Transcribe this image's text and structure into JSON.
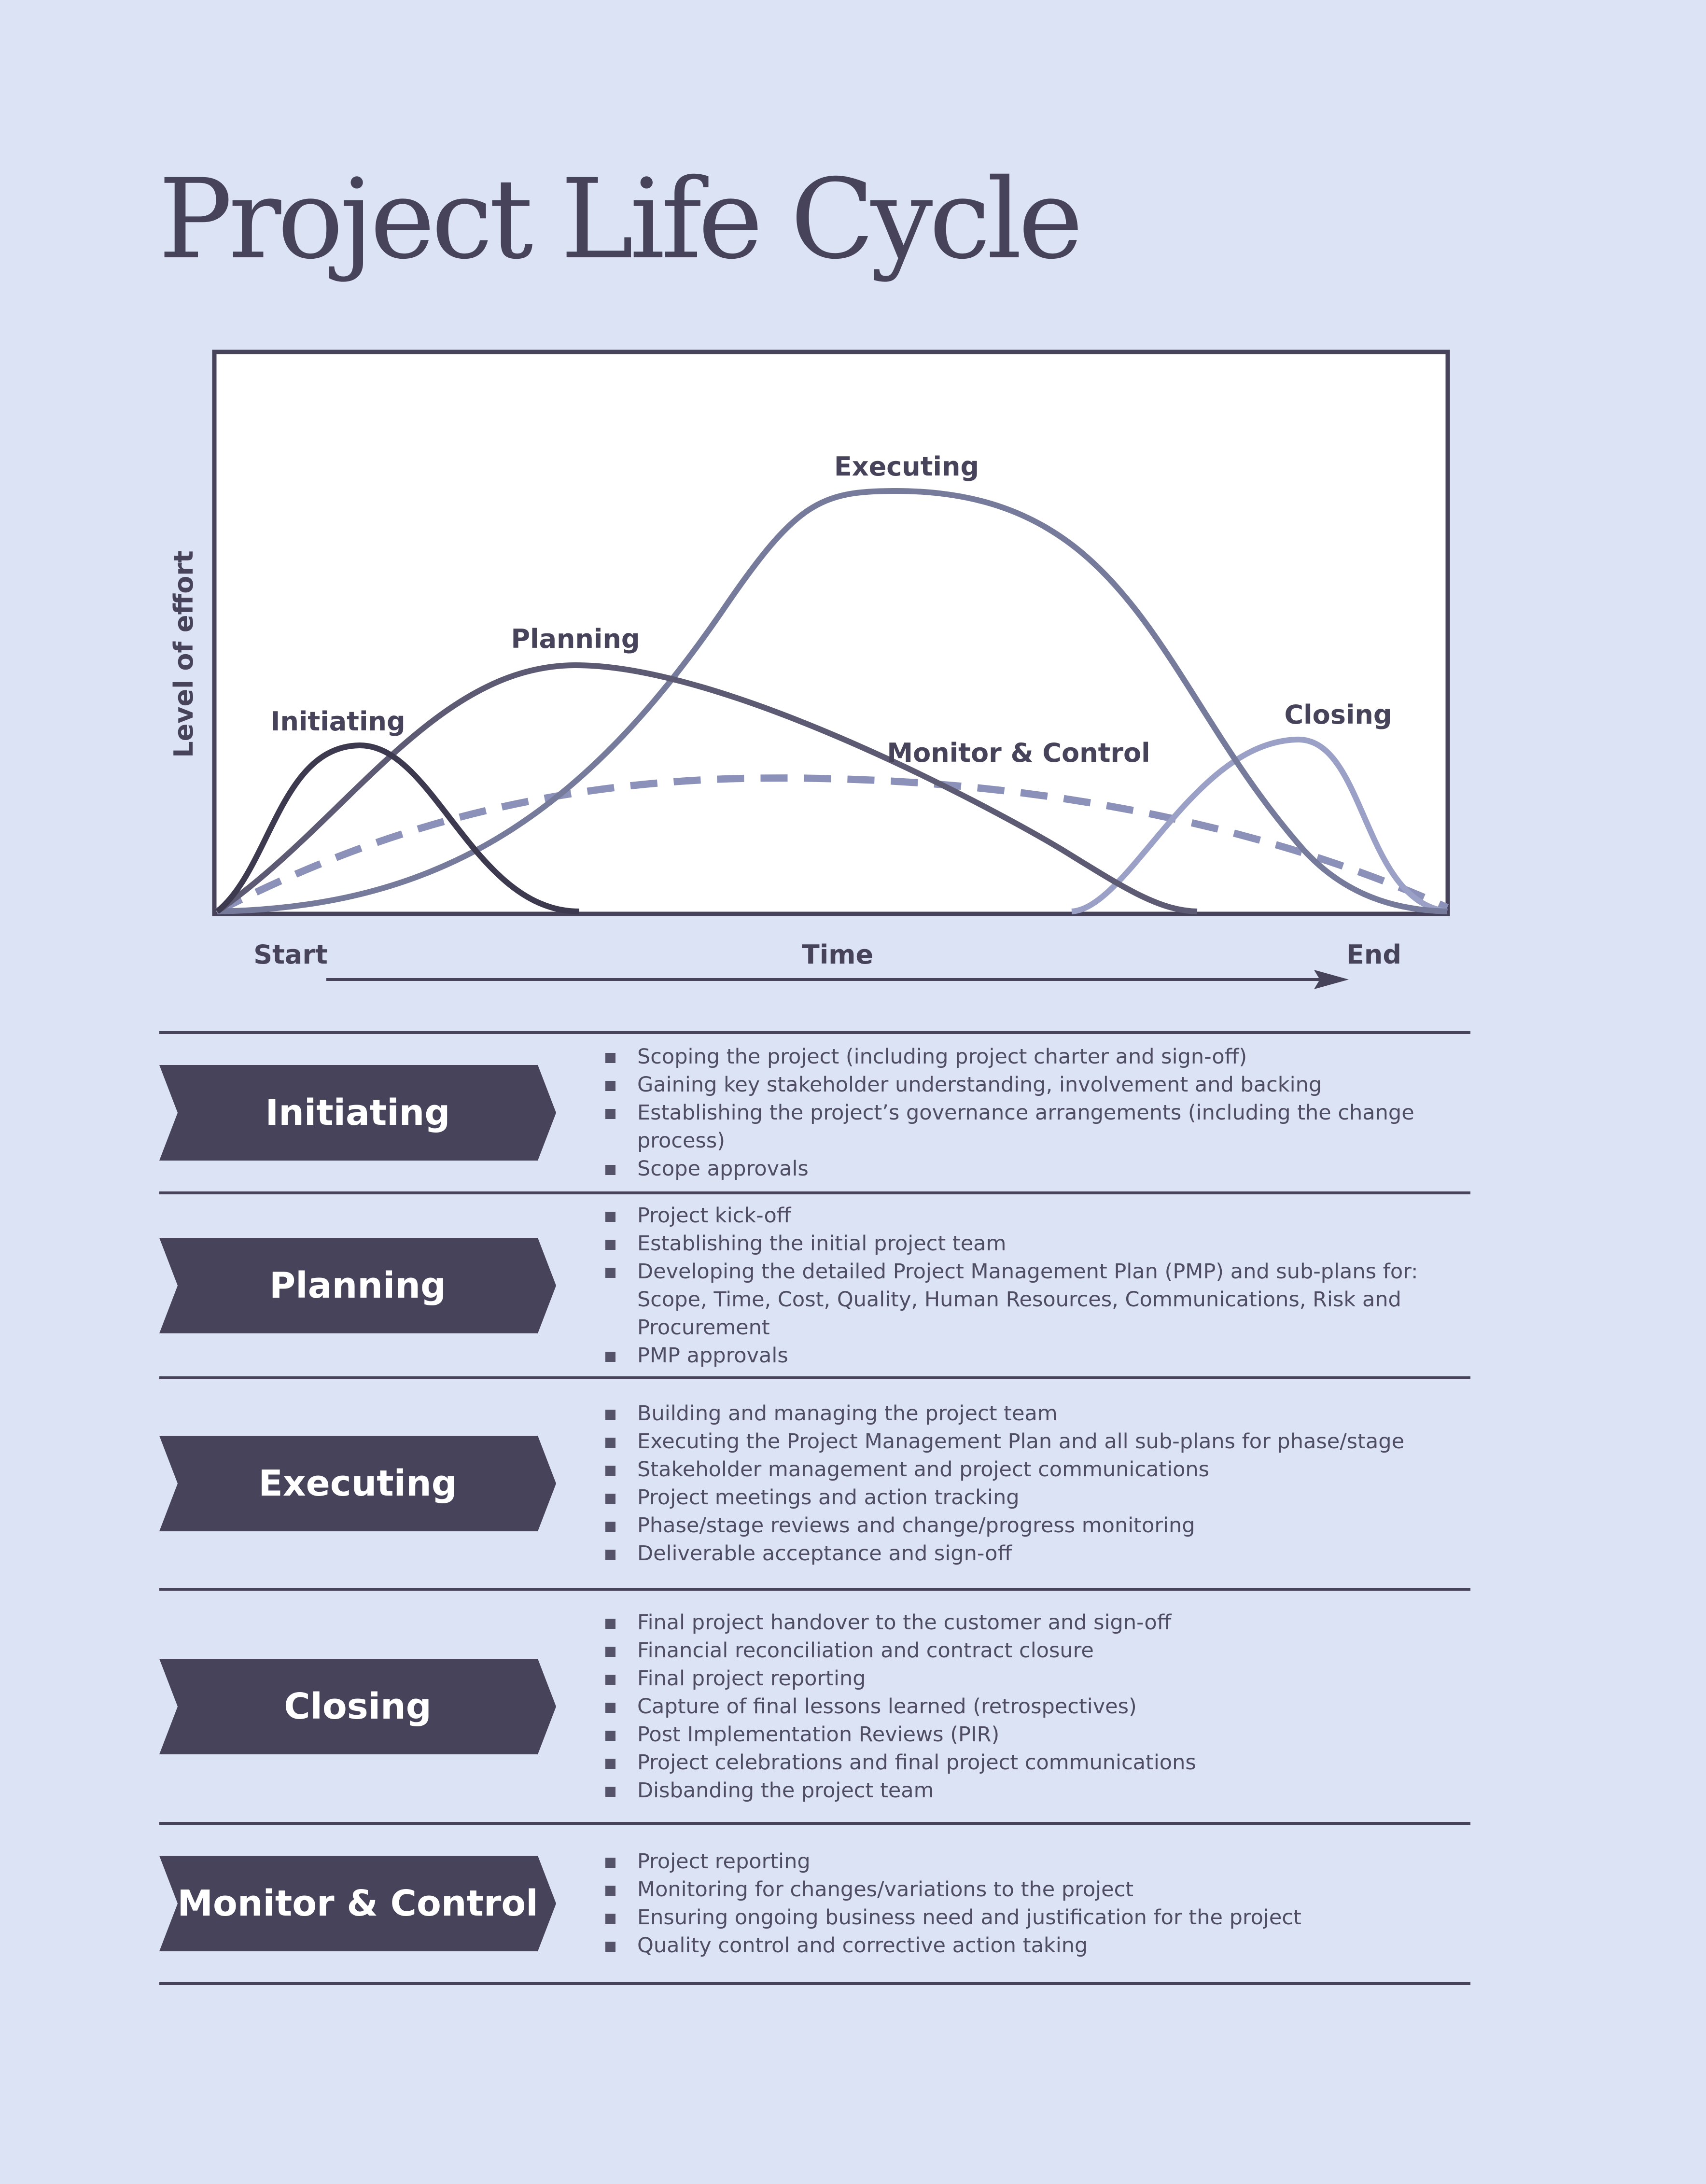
{
  "title": "Project Life Cycle",
  "chart_data": {
    "type": "line",
    "ylabel": "Level of effort",
    "xlabel": "Time",
    "x_start_label": "Start",
    "x_end_label": "End",
    "grid": false,
    "legend": "none",
    "series": [
      {
        "name": "Initiating",
        "color": "#3d3a50",
        "peak_x": 0.12,
        "peak_y": 0.3
      },
      {
        "name": "Planning",
        "color": "#5d5b74",
        "peak_x": 0.29,
        "peak_y": 0.44
      },
      {
        "name": "Executing",
        "color": "#767a9b",
        "peak_x": 0.55,
        "peak_y": 0.75
      },
      {
        "name": "Closing",
        "color": "#9ba1c6",
        "peak_x": 0.88,
        "peak_y": 0.31
      },
      {
        "name": "Monitor & Control",
        "color": "#8b91b8",
        "style": "dashed",
        "peak_x": 0.45,
        "peak_y": 0.25
      }
    ]
  },
  "phases": [
    {
      "label": "Initiating",
      "items": [
        "Scoping the project (including project charter and sign-off)",
        "Gaining key stakeholder understanding, involvement and backing",
        "Establishing the project’s governance arrangements (including the change process)",
        "Scope approvals"
      ]
    },
    {
      "label": "Planning",
      "items": [
        "Project kick-off",
        "Establishing the initial project team",
        "Developing the detailed Project Management Plan (PMP) and sub-plans for: Scope, Time, Cost, Quality, Human Resources, Communications, Risk and Procurement",
        "PMP approvals"
      ]
    },
    {
      "label": "Executing",
      "items": [
        "Building and managing the project team",
        "Executing the Project Management Plan and all sub-plans for phase/stage",
        "Stakeholder management and project communications",
        "Project meetings and action tracking",
        "Phase/stage reviews and change/progress monitoring",
        "Deliverable acceptance and sign-off"
      ]
    },
    {
      "label": "Closing",
      "items": [
        "Final project handover to the customer and sign-off",
        "Financial reconciliation and contract closure",
        "Final project reporting",
        "Capture of final lessons learned (retrospectives)",
        "Post Implementation Reviews (PIR)",
        "Project celebrations and final project communications",
        "Disbanding the project team"
      ]
    },
    {
      "label": "Monitor & Control",
      "items": [
        "Project reporting",
        "Monitoring for changes/variations to the project",
        "Ensuring ongoing business need and justification for the project",
        "Quality control and corrective action taking"
      ]
    }
  ]
}
